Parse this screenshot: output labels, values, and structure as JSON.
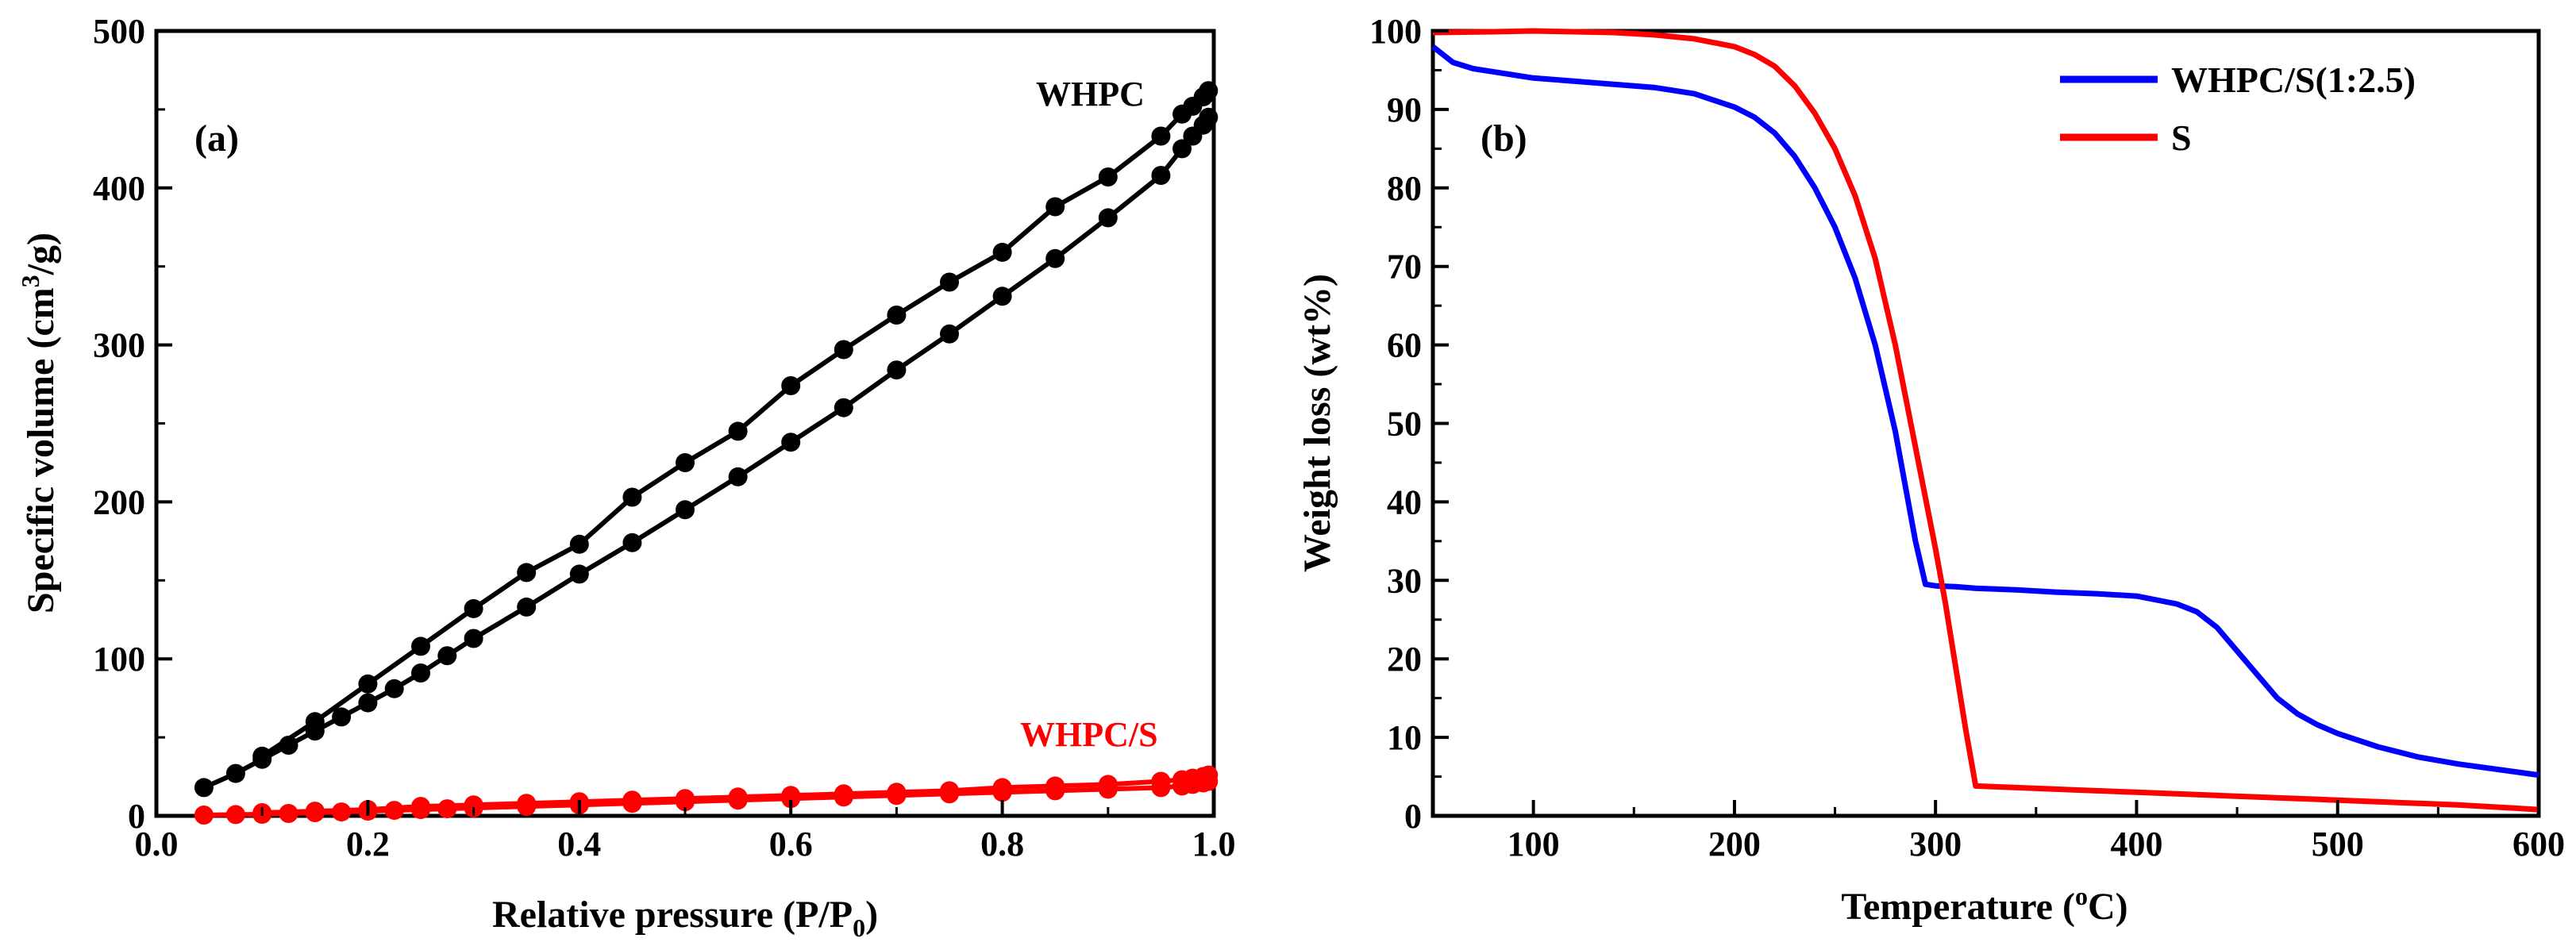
{
  "chart_data": [
    {
      "type": "line",
      "panel_label": "(a)",
      "xlabel": "Relative pressure (P/P",
      "xlabel_sub": "0",
      "xlabel_end": ")",
      "ylabel": "Specific volume (cm",
      "ylabel_sup": "3",
      "ylabel_end": "/g)",
      "xlim": [
        0.0,
        1.0
      ],
      "ylim": [
        0,
        500
      ],
      "x_ticks": [
        0.0,
        0.2,
        0.4,
        0.6,
        0.8,
        1.0
      ],
      "x_tick_labels": [
        "0.0",
        "0.2",
        "0.4",
        "0.6",
        "0.8",
        "1.0"
      ],
      "y_ticks": [
        0,
        100,
        200,
        300,
        400,
        500
      ],
      "y_tick_labels": [
        "0",
        "100",
        "200",
        "300",
        "400",
        "500"
      ],
      "grid": false,
      "series": [
        {
          "name": "WHPC",
          "color": "#000000",
          "marker": "circle",
          "adsorption": {
            "x": [
              0.045,
              0.075,
              0.1,
              0.125,
              0.15,
              0.175,
              0.2,
              0.225,
              0.25,
              0.275,
              0.3,
              0.35,
              0.4,
              0.45,
              0.5,
              0.55,
              0.6,
              0.65,
              0.7,
              0.75,
              0.8,
              0.85,
              0.9,
              0.95,
              0.97,
              0.98,
              0.99,
              0.995
            ],
            "y": [
              18,
              27,
              36,
              45,
              54,
              63,
              72,
              81,
              91,
              102,
              113,
              133,
              154,
              174,
              195,
              216,
              238,
              260,
              284,
              307,
              331,
              355,
              381,
              408,
              425,
              433,
              440,
              445
            ]
          },
          "desorption": {
            "x": [
              0.995,
              0.99,
              0.98,
              0.97,
              0.95,
              0.9,
              0.85,
              0.8,
              0.75,
              0.7,
              0.65,
              0.6,
              0.55,
              0.5,
              0.45,
              0.4,
              0.35,
              0.3,
              0.25,
              0.2,
              0.15,
              0.1
            ],
            "y": [
              462,
              458,
              452,
              447,
              433,
              407,
              388,
              359,
              340,
              319,
              297,
              274,
              245,
              225,
              203,
              173,
              155,
              132,
              108,
              84,
              60,
              38
            ]
          }
        },
        {
          "name": "WHPC/S",
          "color": "#ff0000",
          "marker": "circle",
          "adsorption": {
            "x": [
              0.045,
              0.075,
              0.1,
              0.125,
              0.15,
              0.175,
              0.2,
              0.225,
              0.25,
              0.275,
              0.3,
              0.35,
              0.4,
              0.45,
              0.5,
              0.55,
              0.6,
              0.65,
              0.7,
              0.75,
              0.8,
              0.85,
              0.9,
              0.95,
              0.97,
              0.98,
              0.99,
              0.995
            ],
            "y": [
              0.5,
              0.8,
              1,
              1.5,
              2,
              2.5,
              3,
              3.5,
              4,
              4.5,
              5,
              6,
              7,
              8,
              9,
              10,
              11,
              12,
              13,
              14,
              15,
              16,
              17,
              18,
              19,
              20,
              21,
              22
            ]
          },
          "desorption": {
            "x": [
              0.995,
              0.99,
              0.98,
              0.97,
              0.95,
              0.9,
              0.85,
              0.8,
              0.75,
              0.7,
              0.65,
              0.6,
              0.55,
              0.5,
              0.45,
              0.4,
              0.35,
              0.3,
              0.25,
              0.2,
              0.15,
              0.1
            ],
            "y": [
              26,
              25,
              24,
              23,
              22,
              20,
              19,
              18,
              16,
              15,
              14,
              13,
              12,
              11,
              10,
              9,
              8,
              7,
              6,
              4,
              3,
              2
            ]
          }
        }
      ]
    },
    {
      "type": "line",
      "panel_label": "(b)",
      "xlabel": "Temperature (",
      "xlabel_sup": "o",
      "xlabel_end": "C)",
      "ylabel": "Weight loss (wt%)",
      "xlim": [
        50,
        600
      ],
      "ylim": [
        0,
        100
      ],
      "x_ticks": [
        100,
        200,
        300,
        400,
        500,
        600
      ],
      "x_tick_labels": [
        "100",
        "200",
        "300",
        "400",
        "500",
        "600"
      ],
      "y_ticks": [
        0,
        10,
        20,
        30,
        40,
        50,
        60,
        70,
        80,
        90,
        100
      ],
      "y_tick_labels": [
        "0",
        "10",
        "20",
        "30",
        "40",
        "50",
        "60",
        "70",
        "80",
        "90",
        "100"
      ],
      "grid": false,
      "legend_position": "top-right",
      "series": [
        {
          "name": "WHPC/S(1:2.5)",
          "color": "#0000ff",
          "x": [
            50,
            60,
            70,
            80,
            100,
            120,
            140,
            160,
            180,
            200,
            210,
            220,
            230,
            240,
            250,
            260,
            270,
            280,
            285,
            290,
            295,
            300,
            310,
            320,
            340,
            360,
            380,
            400,
            410,
            420,
            430,
            440,
            450,
            460,
            470,
            480,
            490,
            500,
            520,
            540,
            560,
            580,
            600
          ],
          "y": [
            98,
            96,
            95.2,
            94.8,
            94,
            93.6,
            93.2,
            92.8,
            92,
            90.3,
            89,
            87,
            84,
            80,
            75,
            68.5,
            60,
            49,
            42,
            35,
            29.5,
            29.3,
            29.2,
            29,
            28.8,
            28.5,
            28.3,
            28,
            27.5,
            27,
            26,
            24,
            21,
            18,
            15,
            13,
            11.6,
            10.5,
            8.8,
            7.5,
            6.6,
            5.9,
            5.2
          ]
        },
        {
          "name": "S",
          "color": "#ff0000",
          "x": [
            50,
            80,
            100,
            120,
            140,
            160,
            180,
            200,
            210,
            220,
            230,
            240,
            250,
            260,
            270,
            280,
            290,
            300,
            305,
            310,
            315,
            320,
            340,
            360,
            380,
            400,
            420,
            440,
            460,
            480,
            500,
            520,
            540,
            560,
            580,
            600
          ],
          "y": [
            99.8,
            99.9,
            100,
            99.9,
            99.8,
            99.5,
            99,
            98,
            97,
            95.5,
            93,
            89.5,
            85,
            79,
            71,
            60,
            47,
            34,
            27,
            19,
            11,
            3.8,
            3.6,
            3.4,
            3.2,
            3,
            2.8,
            2.6,
            2.4,
            2.2,
            2,
            1.8,
            1.6,
            1.4,
            1.1,
            0.8
          ]
        }
      ]
    }
  ]
}
